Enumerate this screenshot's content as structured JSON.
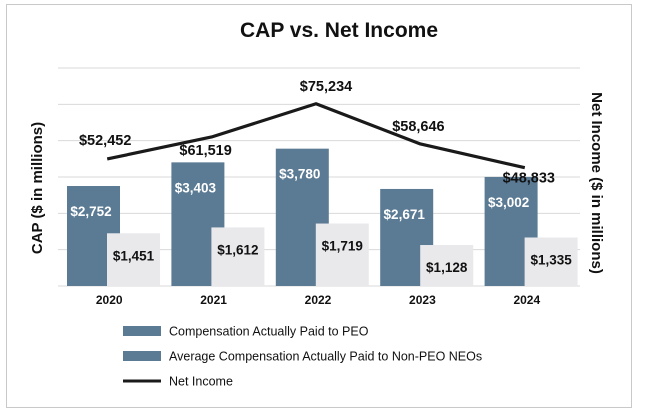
{
  "chart_data": {
    "type": "bar",
    "title": "CAP vs. Net Income",
    "ylabel": "CAP ($ in millions)",
    "y2label": "Net Income ($ in millions)",
    "categories": [
      "2020",
      "2021",
      "2022",
      "2023",
      "2024"
    ],
    "ylim": [
      0,
      6000
    ],
    "y2lim": [
      0,
      90000
    ],
    "grid": true,
    "legend_position": "bottom",
    "colors": {
      "peo": "#5b7a93",
      "neo": "#e9e9ec",
      "net_income": "#1a1a1a",
      "grid": "#d9d9d9"
    },
    "series": [
      {
        "name": "Compensation Actually Paid to PEO",
        "type": "bar",
        "axis": "left",
        "values": [
          2752,
          3403,
          3780,
          2671,
          3002
        ],
        "labels": [
          "$2,752",
          "$3,403",
          "$3,780",
          "$2,671",
          "$3,002"
        ]
      },
      {
        "name": "Average Compensation Actually Paid to Non-PEO NEOs",
        "type": "bar",
        "axis": "left",
        "values": [
          1451,
          1612,
          1719,
          1128,
          1335
        ],
        "labels": [
          "$1,451",
          "$1,612",
          "$1,719",
          "$1,128",
          "$1,335"
        ]
      },
      {
        "name": "Net Income",
        "type": "line",
        "axis": "right",
        "values": [
          52452,
          61519,
          75234,
          58646,
          48833
        ],
        "labels": [
          "$52,452",
          "$61,519",
          "$75,234",
          "$58,646",
          "$48,833"
        ]
      }
    ]
  }
}
